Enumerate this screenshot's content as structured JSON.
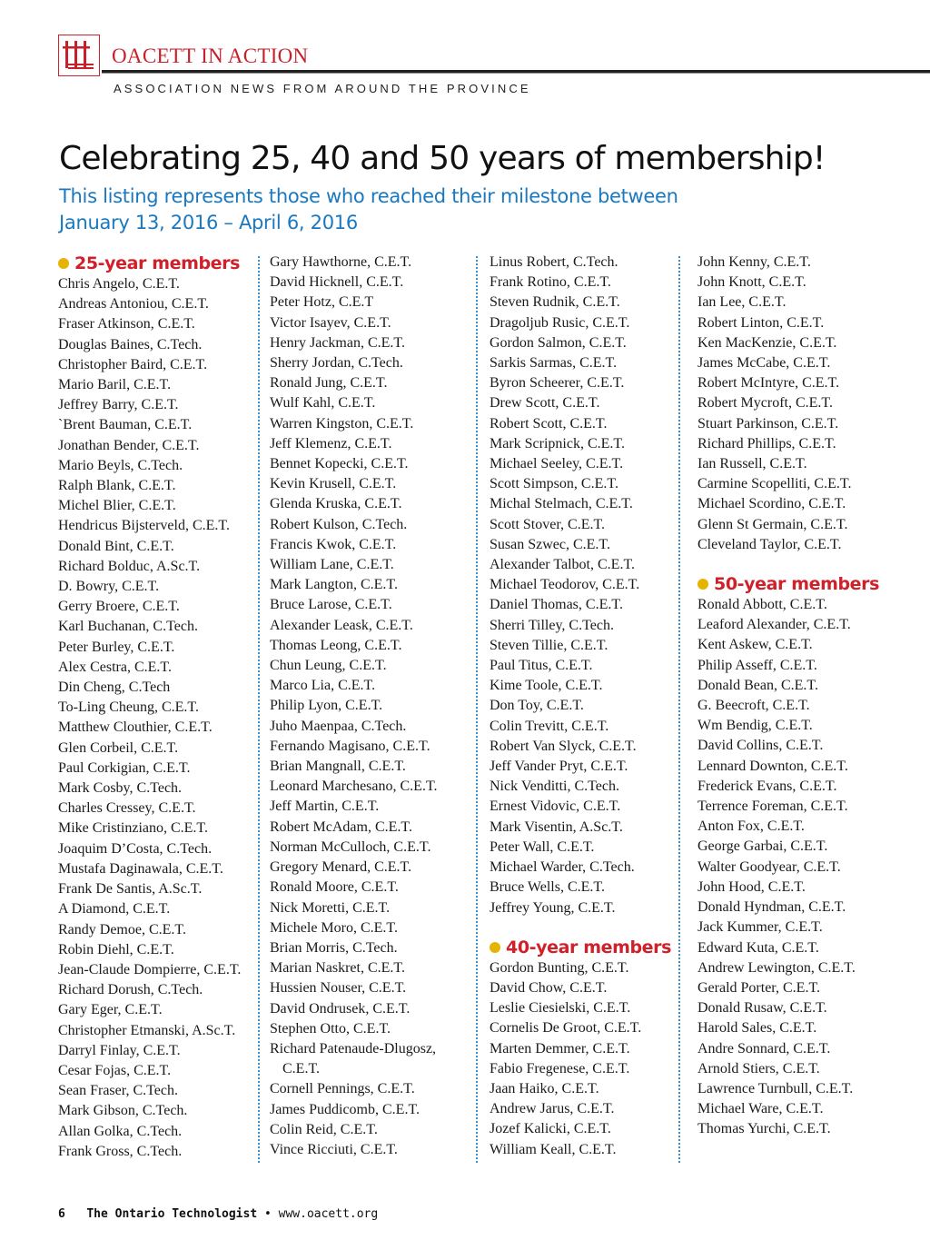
{
  "header": {
    "logo_text": "ttt",
    "brand": "OACETT IN ACTION",
    "tagline": "ASSOCIATION NEWS FROM AROUND THE PROVINCE",
    "accent_color": "#c8202a"
  },
  "article": {
    "title": "Celebrating 25, 40 and 50 years of membership!",
    "subtitle": "This listing represents those who reached their milestone between January 13, 2016 – April 6, 2016",
    "subtitle_color": "#1a78c0",
    "bullet_color": "#e6b400"
  },
  "columns": [
    [
      {
        "heading": "25-year members"
      },
      "Chris Angelo, C.E.T.",
      "Andreas Antoniou, C.E.T.",
      "Fraser Atkinson, C.E.T.",
      "Douglas Baines, C.Tech.",
      "Christopher Baird, C.E.T.",
      "Mario Baril, C.E.T.",
      "Jeffrey Barry, C.E.T.",
      "`Brent Bauman, C.E.T.",
      "Jonathan Bender, C.E.T.",
      "Mario Beyls, C.Tech.",
      "Ralph Blank, C.E.T.",
      "Michel Blier, C.E.T.",
      "Hendricus Bijsterveld, C.E.T.",
      "Donald Bint, C.E.T.",
      "Richard Bolduc, A.Sc.T.",
      "D. Bowry, C.E.T.",
      "Gerry Broere, C.E.T.",
      "Karl Buchanan, C.Tech.",
      "Peter Burley, C.E.T.",
      "Alex Cestra, C.E.T.",
      "Din Cheng, C.Tech",
      "To-Ling Cheung, C.E.T.",
      "Matthew Clouthier, C.E.T.",
      "Glen Corbeil, C.E.T.",
      "Paul Corkigian, C.E.T.",
      "Mark Cosby, C.Tech.",
      "Charles Cressey, C.E.T.",
      "Mike Cristinziano, C.E.T.",
      "Joaquim D’Costa, C.Tech.",
      "Mustafa Daginawala, C.E.T.",
      "Frank De Santis, A.Sc.T.",
      "A Diamond, C.E.T.",
      "Randy Demoe, C.E.T.",
      "Robin Diehl, C.E.T.",
      "Jean-Claude Dompierre, C.E.T.",
      "Richard Dorush, C.Tech.",
      "Gary Eger, C.E.T.",
      "Christopher Etmanski, A.Sc.T.",
      "Darryl Finlay, C.E.T.",
      "Cesar Fojas, C.E.T.",
      "Sean Fraser, C.Tech.",
      "Mark Gibson, C.Tech.",
      "Allan Golka, C.Tech.",
      "Frank Gross, C.Tech."
    ],
    [
      "Gary Hawthorne, C.E.T.",
      "David Hicknell, C.E.T.",
      "Peter Hotz, C.E.T",
      "Victor Isayev, C.E.T.",
      "Henry Jackman, C.E.T.",
      "Sherry Jordan, C.Tech.",
      "Ronald Jung, C.E.T.",
      "Wulf Kahl, C.E.T.",
      "Warren Kingston, C.E.T.",
      "Jeff Klemenz, C.E.T.",
      "Bennet Kopecki, C.E.T.",
      "Kevin Krusell, C.E.T.",
      "Glenda Kruska, C.E.T.",
      "Robert Kulson, C.Tech.",
      "Francis Kwok, C.E.T.",
      "William Lane, C.E.T.",
      "Mark Langton, C.E.T.",
      "Bruce Larose, C.E.T.",
      "Alexander Leask, C.E.T.",
      "Thomas Leong, C.E.T.",
      "Chun Leung, C.E.T.",
      "Marco Lia, C.E.T.",
      "Philip Lyon, C.E.T.",
      "Juho Maenpaa, C.Tech.",
      "Fernando Magisano, C.E.T.",
      "Brian Mangnall, C.E.T.",
      "Leonard Marchesano, C.E.T.",
      "Jeff Martin, C.E.T.",
      "Robert McAdam, C.E.T.",
      "Norman McCulloch, C.E.T.",
      "Gregory Menard, C.E.T.",
      "Ronald Moore, C.E.T.",
      "Nick Moretti, C.E.T.",
      "Michele Moro, C.E.T.",
      "Brian Morris, C.Tech.",
      "Marian Naskret, C.E.T.",
      "Hussien Nouser, C.E.T.",
      "David Ondrusek, C.E.T.",
      "Stephen Otto, C.E.T.",
      "Richard Patenaude-Dlugosz, C.E.T.",
      "Cornell Pennings, C.E.T.",
      "James Puddicomb, C.E.T.",
      "Colin Reid, C.E.T.",
      "Vince Ricciuti, C.E.T."
    ],
    [
      "Linus Robert, C.Tech.",
      "Frank Rotino, C.E.T.",
      "Steven Rudnik, C.E.T.",
      "Dragoljub Rusic, C.E.T.",
      "Gordon Salmon, C.E.T.",
      "Sarkis Sarmas, C.E.T.",
      "Byron Scheerer, C.E.T.",
      "Drew Scott, C.E.T.",
      "Robert Scott, C.E.T.",
      "Mark Scripnick, C.E.T.",
      "Michael Seeley, C.E.T.",
      "Scott Simpson, C.E.T.",
      "Michal Stelmach, C.E.T.",
      "Scott Stover, C.E.T.",
      "Susan Szwec, C.E.T.",
      "Alexander Talbot, C.E.T.",
      "Michael Teodorov, C.E.T.",
      "Daniel Thomas, C.E.T.",
      "Sherri Tilley, C.Tech.",
      "Steven Tillie, C.E.T.",
      "Paul Titus, C.E.T.",
      "Kime Toole, C.E.T.",
      "Don Toy, C.E.T.",
      "Colin Trevitt, C.E.T.",
      "Robert Van Slyck, C.E.T.",
      "Jeff Vander Pryt, C.E.T.",
      "Nick Venditti, C.Tech.",
      "Ernest Vidovic, C.E.T.",
      "Mark Visentin, A.Sc.T.",
      "Peter Wall, C.E.T.",
      "Michael Warder, C.Tech.",
      "Bruce Wells, C.E.T.",
      "Jeffrey Young, C.E.T.",
      {
        "heading": "40-year members"
      },
      "Gordon Bunting, C.E.T.",
      "David Chow, C.E.T.",
      "Leslie Ciesielski, C.E.T.",
      "Cornelis De Groot, C.E.T.",
      "Marten Demmer, C.E.T.",
      "Fabio Fregenese, C.E.T.",
      "Jaan Haiko, C.E.T.",
      "Andrew Jarus, C.E.T.",
      "Jozef Kalicki, C.E.T.",
      "William Keall, C.E.T."
    ],
    [
      "John Kenny, C.E.T.",
      "John Knott, C.E.T.",
      "Ian Lee, C.E.T.",
      "Robert Linton, C.E.T.",
      "Ken MacKenzie, C.E.T.",
      "James McCabe, C.E.T.",
      "Robert McIntyre, C.E.T.",
      "Robert Mycroft, C.E.T.",
      "Stuart Parkinson, C.E.T.",
      "Richard Phillips, C.E.T.",
      "Ian Russell, C.E.T.",
      "Carmine Scopelliti, C.E.T.",
      "Michael Scordino, C.E.T.",
      "Glenn St Germain, C.E.T.",
      "Cleveland Taylor, C.E.T.",
      {
        "heading": "50-year members"
      },
      "Ronald Abbott, C.E.T.",
      "Leaford Alexander, C.E.T.",
      "Kent Askew, C.E.T.",
      "Philip Asseff, C.E.T.",
      "Donald Bean, C.E.T.",
      "G. Beecroft, C.E.T.",
      "Wm Bendig, C.E.T.",
      "David Collins, C.E.T.",
      "Lennard Downton, C.E.T.",
      "Frederick Evans, C.E.T.",
      "Terrence Foreman, C.E.T.",
      "Anton Fox, C.E.T.",
      "George Garbai, C.E.T.",
      "Walter Goodyear, C.E.T.",
      "John Hood, C.E.T.",
      "Donald Hyndman, C.E.T.",
      "Jack Kummer, C.E.T.",
      "Edward Kuta, C.E.T.",
      "Andrew Lewington, C.E.T.",
      "Gerald Porter, C.E.T.",
      "Donald Rusaw, C.E.T.",
      "Harold Sales, C.E.T.",
      "Andre Sonnard, C.E.T.",
      "Arnold Stiers, C.E.T.",
      "Lawrence Turnbull, C.E.T.",
      "Michael Ware, C.E.T.",
      "Thomas Yurchi, C.E.T."
    ]
  ],
  "footer": {
    "page_number": "6",
    "publication": "The Ontario Technologist",
    "separator": "•",
    "website": "www.oacett.org"
  }
}
